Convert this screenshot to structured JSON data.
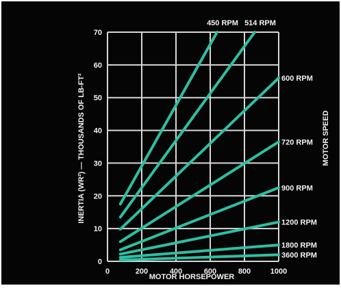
{
  "chart_data": {
    "type": "line",
    "xlabel": "MOTOR HORSEPOWER",
    "ylabel": "INERTIA (WR²) — THOUSANDS OF LB-FT²",
    "y2label": "MOTOR SPEED",
    "xlim": [
      0,
      1000
    ],
    "ylim": [
      0,
      70
    ],
    "xticks": [
      "0",
      "200",
      "400",
      "600",
      "800",
      "1000"
    ],
    "yticks": [
      "0",
      "10",
      "20",
      "30",
      "40",
      "50",
      "60",
      "70"
    ],
    "grid": true,
    "line_color": "#2dbfa3",
    "grid_color": "#d8d8d8",
    "series": [
      {
        "name": "450 RPM",
        "x": [
          75,
          640
        ],
        "y": [
          17.5,
          70
        ]
      },
      {
        "name": "514 RPM",
        "x": [
          75,
          860
        ],
        "y": [
          13.5,
          70
        ]
      },
      {
        "name": "600 RPM",
        "x": [
          75,
          1000
        ],
        "y": [
          9.8,
          56
        ]
      },
      {
        "name": "720 RPM",
        "x": [
          75,
          1000
        ],
        "y": [
          6.0,
          36.5
        ]
      },
      {
        "name": "900 RPM",
        "x": [
          75,
          1000
        ],
        "y": [
          3.5,
          22.5
        ]
      },
      {
        "name": "1200 RPM",
        "x": [
          75,
          1000
        ],
        "y": [
          2.2,
          12.0
        ]
      },
      {
        "name": "1800 RPM",
        "x": [
          75,
          1000
        ],
        "y": [
          1.2,
          5.0
        ]
      },
      {
        "name": "3600 RPM",
        "x": [
          75,
          1000
        ],
        "y": [
          0.4,
          2.0
        ]
      }
    ]
  }
}
